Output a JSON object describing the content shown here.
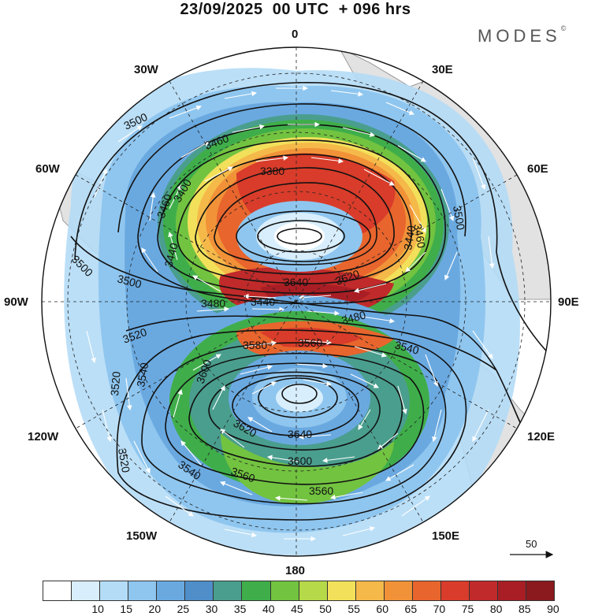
{
  "title": "23/09/2025  00 UTC  + 096 hrs",
  "brand": {
    "name": "MODES",
    "mark": "©"
  },
  "longitude_labels": {
    "lon_0": "0",
    "lon_30e": "30E",
    "lon_60e": "60E",
    "lon_90e": "90E",
    "lon_120e": "120E",
    "lon_150e": "150E",
    "lon_180": "180",
    "lon_150w": "150W",
    "lon_120w": "120W",
    "lon_90w": "90W",
    "lon_60w": "60W",
    "lon_30w": "30W"
  },
  "contour_labels": [
    "3500",
    "3460",
    "3380",
    "3400",
    "3460",
    "3440",
    "3500",
    "3500",
    "3480",
    "3440",
    "3640",
    "3620",
    "3440",
    "3480",
    "3460",
    "3500",
    "3520",
    "3580",
    "3560",
    "3540",
    "3520",
    "3540",
    "3600",
    "3620",
    "3640",
    "3600",
    "3560",
    "3540",
    "3520",
    "3560"
  ],
  "wind_reference": {
    "label": "50"
  },
  "colorbar": {
    "ticks": [
      "10",
      "15",
      "20",
      "25",
      "30",
      "35",
      "40",
      "45",
      "50",
      "55",
      "60",
      "65",
      "70",
      "75",
      "80",
      "85",
      "90"
    ],
    "colors": [
      "#ffffff",
      "#d8eefc",
      "#b4dcf6",
      "#8fc6ef",
      "#6aa9e0",
      "#4f8ec9",
      "#4a9e8e",
      "#3fae4a",
      "#72c340",
      "#b5d948",
      "#f2e05a",
      "#f5b94a",
      "#f19238",
      "#e8652d",
      "#d93c2a",
      "#c02a2a",
      "#a81e24",
      "#8a1a1e"
    ]
  }
}
